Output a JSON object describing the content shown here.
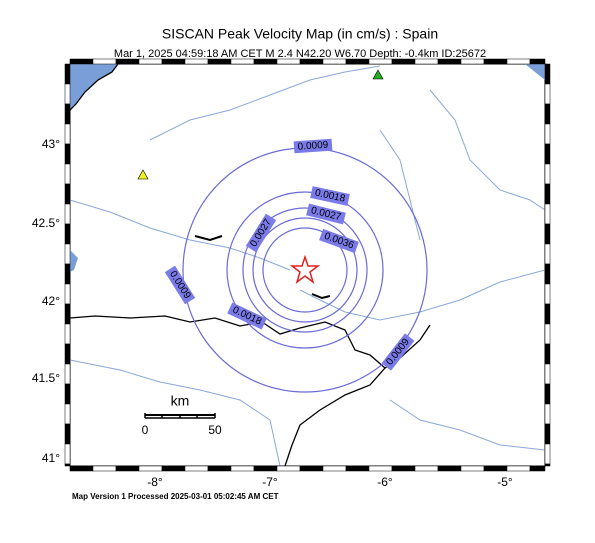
{
  "header": {
    "title": "SISCAN Peak Velocity Map (in cm/s) : Spain",
    "subtitle": "Mar  1, 2025 04:59:18 AM CET   M 2.4   N42.20 W6.70   Depth: -0.4km   ID:25672"
  },
  "lon_labels": [
    "-8°",
    "-7°",
    "-6°",
    "-5°"
  ],
  "lat_labels": [
    "43°",
    "42.5°",
    "42°",
    "41.5°",
    "41°"
  ],
  "contour_labels": [
    "0.0009",
    "0.0018",
    "0.0027",
    "0.0036",
    "0.0027",
    "0.0009",
    "0.0018",
    "0.0009"
  ],
  "scale_bar": {
    "unit": "km",
    "labels": [
      "0",
      "50"
    ]
  },
  "footer": "Map Version 1 Processed 2025-03-01 05:02:45 AM CET"
}
